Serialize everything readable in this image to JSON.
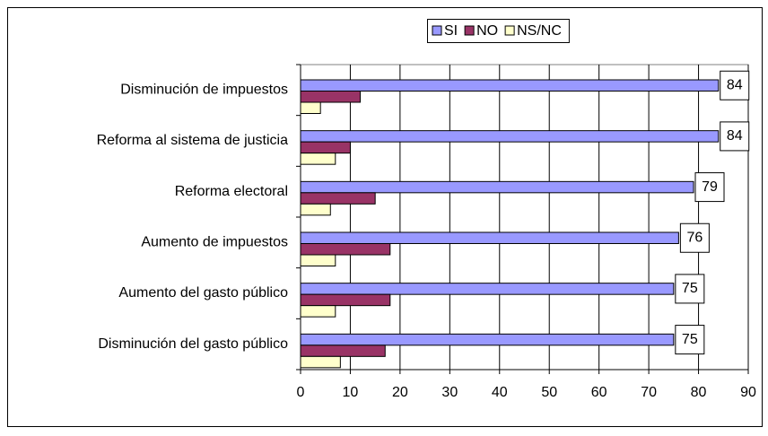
{
  "chart_data": {
    "type": "bar",
    "orientation": "horizontal",
    "categories": [
      "Disminución de impuestos",
      "Reforma al sistema de justicia",
      "Reforma electoral",
      "Aumento de impuestos",
      "Aumento del gasto público",
      "Disminución del gasto público"
    ],
    "series": [
      {
        "name": "SI",
        "color": "#9999ff",
        "values": [
          84,
          84,
          79,
          76,
          75,
          75
        ]
      },
      {
        "name": "NO",
        "color": "#993366",
        "values": [
          12,
          10,
          15,
          18,
          18,
          17
        ]
      },
      {
        "name": "NS/NC",
        "color": "#ffffcc",
        "values": [
          4,
          7,
          6,
          7,
          7,
          8
        ]
      }
    ],
    "data_labels_series": 0,
    "xlim": [
      0,
      90
    ],
    "xticks": [
      0,
      10,
      20,
      30,
      40,
      50,
      60,
      70,
      80,
      90
    ],
    "grid": true,
    "legend": "top"
  }
}
